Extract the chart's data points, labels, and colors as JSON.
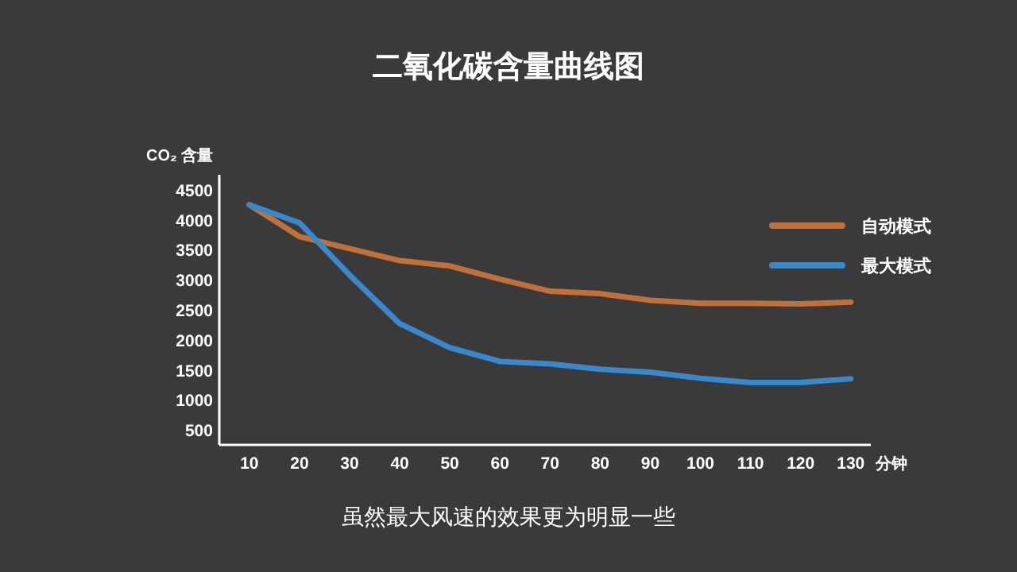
{
  "chart_data": {
    "type": "line",
    "title": "二氧化碳含量曲线图",
    "ylabel": "CO₂ 含量",
    "xlabel": "分钟",
    "annotations": [
      "虽然最大风速的效果更为明显一些"
    ],
    "x": [
      10,
      20,
      30,
      40,
      50,
      60,
      70,
      80,
      90,
      100,
      110,
      120,
      130
    ],
    "series": [
      {
        "name": "自动模式",
        "color": "#c0703a",
        "values": [
          4250,
          3720,
          3520,
          3320,
          3230,
          3010,
          2810,
          2770,
          2660,
          2610,
          2610,
          2600,
          2630
        ]
      },
      {
        "name": "最大模式",
        "color": "#3a88cc",
        "values": [
          4250,
          3950,
          3080,
          2270,
          1870,
          1640,
          1600,
          1510,
          1460,
          1360,
          1290,
          1290,
          1350
        ]
      }
    ],
    "xlim": [
      4,
      134
    ],
    "ylim": [
      250,
      4750
    ],
    "xticks": [
      10,
      20,
      30,
      40,
      50,
      60,
      70,
      80,
      90,
      100,
      110,
      120,
      130
    ],
    "yticks": [
      500,
      1000,
      1500,
      2000,
      2500,
      3000,
      3500,
      4000,
      4500
    ],
    "legend": "top right"
  }
}
